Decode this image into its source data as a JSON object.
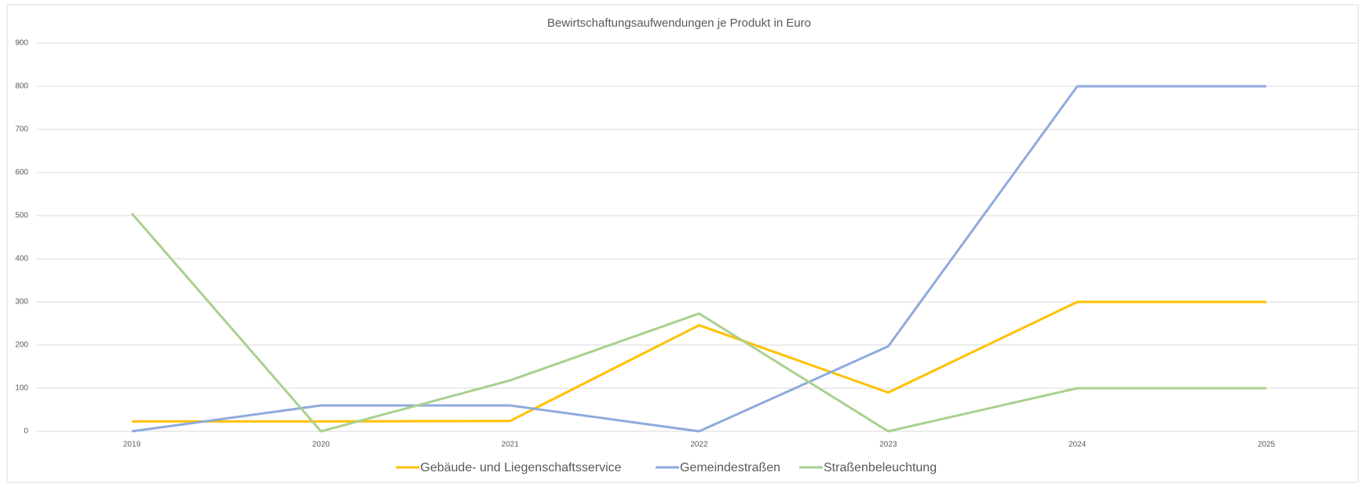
{
  "chart_data": {
    "type": "line",
    "title": "Bewirtschaftungsaufwendungen  je Produkt in Euro",
    "categories": [
      "2019",
      "2020",
      "2021",
      "2022",
      "2023",
      "2024",
      "2025"
    ],
    "series": [
      {
        "name": "Gebäude- und Liegenschaftsservice",
        "color": "#ffc000",
        "values": [
          23,
          23,
          24,
          246,
          90,
          300,
          300
        ]
      },
      {
        "name": "Gemeindestraßen",
        "color": "#8faadc",
        "values": [
          0,
          60,
          60,
          0,
          197,
          800,
          800
        ]
      },
      {
        "name": "Straßenbeleuchtung",
        "color": "#a9d18e",
        "values": [
          505,
          0,
          118,
          273,
          0,
          100,
          100
        ]
      }
    ],
    "ylim": [
      0,
      900
    ],
    "yticks": [
      0,
      100,
      200,
      300,
      400,
      500,
      600,
      700,
      800,
      900
    ],
    "grid": true,
    "legend": "bottom"
  }
}
